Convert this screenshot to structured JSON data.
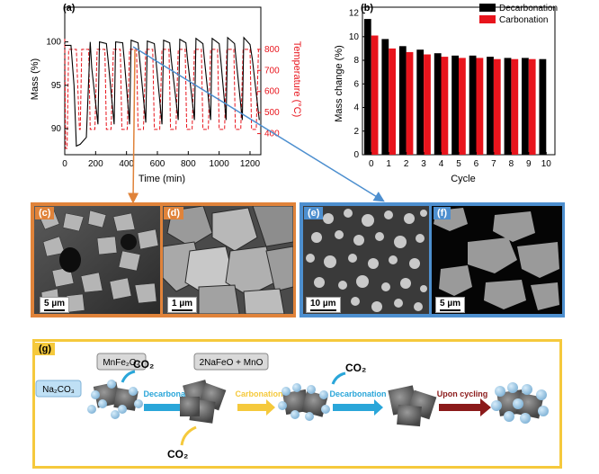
{
  "colors": {
    "orange": "#e0833a",
    "blue": "#4d8fcf",
    "gold": "#f5c93c",
    "black": "#000000",
    "red": "#e8141c"
  },
  "panel_a": {
    "label": "(a)",
    "xlabel": "Time (min)",
    "ylabel_left": "Mass (%)",
    "ylabel_right": "Temperature (°C)",
    "xticks": [
      "0",
      "200",
      "400",
      "600",
      "800",
      "1000",
      "1200"
    ],
    "yticks_left": [
      "90",
      "95",
      "100"
    ],
    "yticks_right": [
      "400",
      "500",
      "600",
      "700",
      "800"
    ]
  },
  "panel_b": {
    "label": "(b)",
    "xlabel": "Cycle",
    "ylabel": "Mass change (%)",
    "legend": [
      "Decarbonation",
      "Carbonation"
    ]
  },
  "sem": {
    "c": {
      "label": "(c)",
      "scale": "5 µm"
    },
    "d": {
      "label": "(d)",
      "scale": "1 µm"
    },
    "e": {
      "label": "(e)",
      "scale": "10 µm"
    },
    "f": {
      "label": "(f)",
      "scale": "5 µm"
    }
  },
  "panel_g": {
    "label": "(g)",
    "mnfe": "MnFe₂O₄",
    "na2co3": "Na₂CO₃",
    "co2": "CO₂",
    "products": "2NaFeO + MnO",
    "step1": "Decarbonation",
    "step2": "Carbonation",
    "step3": "Decarbonation",
    "step4": "Upon cycling"
  },
  "chart_data": [
    {
      "type": "line",
      "title": "",
      "xlabel": "Time (min)",
      "ylabel": "Mass (%)",
      "y2label": "Temperature (°C)",
      "xlim": [
        0,
        1270
      ],
      "ylim": [
        87,
        104
      ],
      "y2lim": [
        300,
        1000
      ],
      "series": [
        {
          "name": "Mass",
          "x": [
            0,
            40,
            60,
            75,
            100,
            140,
            165,
            175,
            215,
            225,
            270,
            280,
            320,
            330,
            375,
            385,
            420,
            430,
            475,
            485,
            525,
            535,
            580,
            590,
            630,
            640,
            680,
            690,
            735,
            745,
            785,
            795,
            840,
            850,
            895,
            905,
            945,
            955,
            1000,
            1010,
            1045,
            1055,
            1100,
            1110,
            1150,
            1160,
            1200,
            1215,
            1260
          ],
          "y": [
            99.6,
            99.6,
            95,
            88,
            88.2,
            89,
            100,
            97,
            90.5,
            100,
            99.8,
            98,
            90.5,
            100,
            99.9,
            98,
            90.5,
            100.2,
            99.9,
            98,
            90.7,
            100.1,
            99.8,
            98,
            90.5,
            100.2,
            99.9,
            98,
            91,
            100.3,
            99.9,
            98,
            91,
            100.4,
            99.8,
            98,
            91,
            100.4,
            99.8,
            98,
            91,
            100.5,
            99.8,
            98,
            91,
            100.5,
            99.7,
            98,
            91
          ]
        },
        {
          "name": "Temperature",
          "x": [
            0,
            5,
            15,
            25,
            75,
            95,
            100,
            110,
            155,
            165,
            195,
            210,
            260,
            270,
            300,
            315,
            360,
            370,
            405,
            420,
            465,
            475,
            510,
            525,
            570,
            580,
            615,
            630,
            675,
            685,
            720,
            735,
            780,
            790,
            825,
            840,
            885,
            895,
            930,
            945,
            990,
            1000,
            1035,
            1050,
            1095,
            1105,
            1140,
            1155,
            1200,
            1210,
            1240,
            1255
          ],
          "y": [
            850,
            330,
            330,
            800,
            800,
            420,
            420,
            800,
            800,
            420,
            420,
            800,
            800,
            420,
            420,
            800,
            800,
            420,
            420,
            800,
            800,
            420,
            420,
            800,
            800,
            420,
            420,
            800,
            800,
            420,
            420,
            800,
            800,
            420,
            420,
            800,
            800,
            420,
            420,
            800,
            800,
            420,
            420,
            800,
            800,
            420,
            420,
            800,
            800,
            420,
            420,
            800
          ]
        }
      ]
    },
    {
      "type": "bar",
      "title": "",
      "xlabel": "Cycle",
      "ylabel": "Mass change (%)",
      "categories": [
        "0",
        "1",
        "2",
        "3",
        "4",
        "5",
        "6",
        "7",
        "8",
        "9",
        "10"
      ],
      "ylim": [
        0,
        12.5
      ],
      "series": [
        {
          "name": "Decarbonation",
          "values": [
            11.5,
            9.8,
            9.2,
            8.9,
            8.6,
            8.4,
            8.4,
            8.3,
            8.2,
            8.2,
            8.1
          ]
        },
        {
          "name": "Carbonation",
          "values": [
            10.1,
            9.0,
            8.7,
            8.5,
            8.3,
            8.2,
            8.2,
            8.1,
            8.1,
            8.1,
            null
          ]
        }
      ]
    }
  ]
}
